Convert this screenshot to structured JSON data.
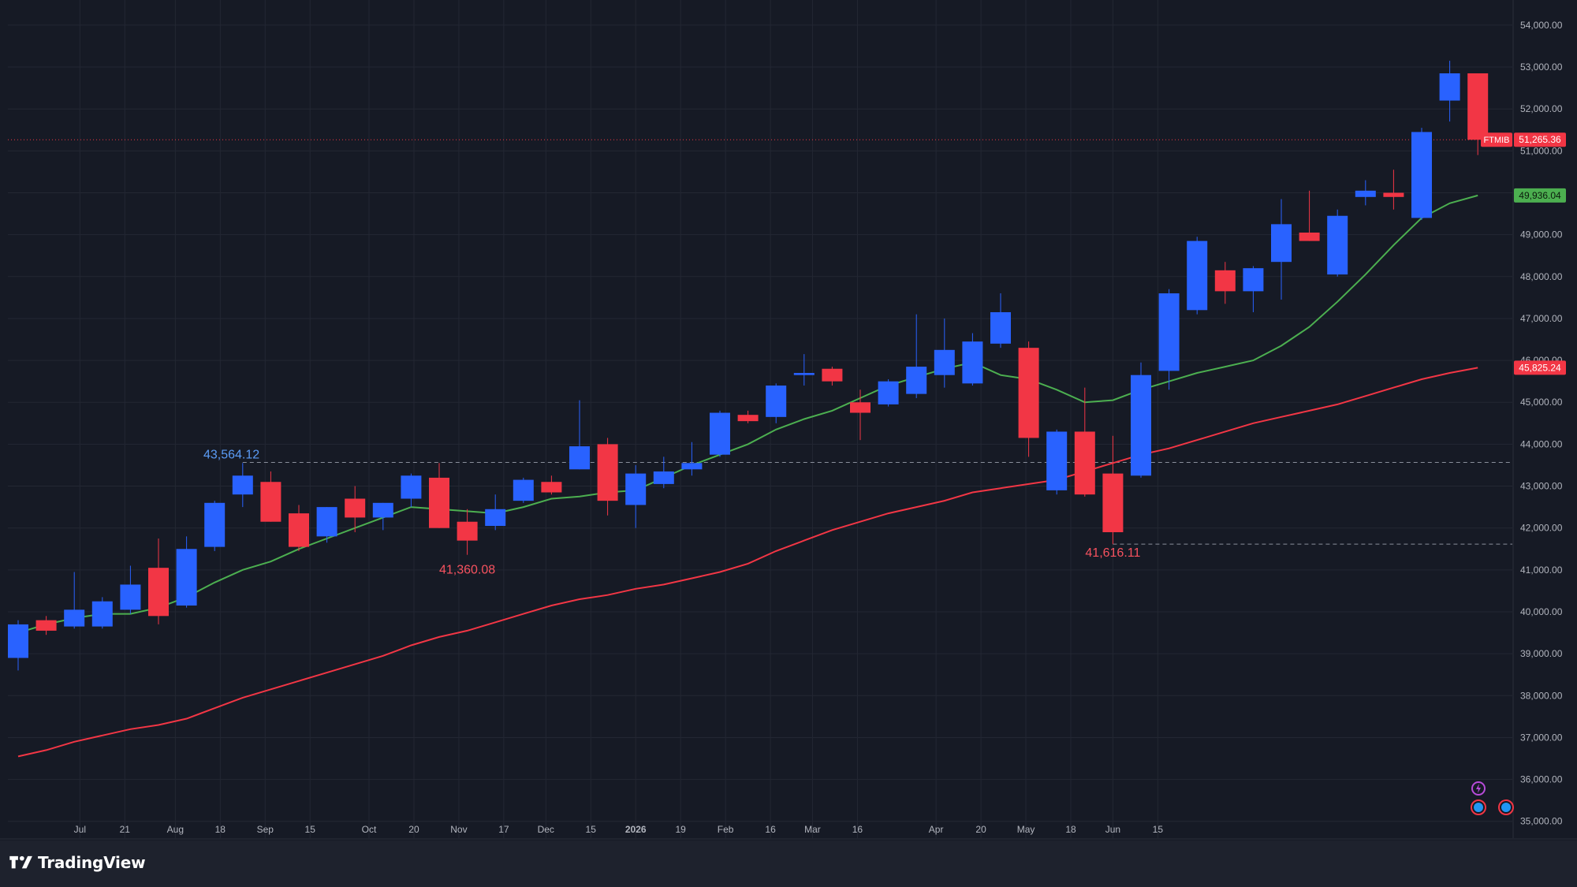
{
  "footer": {
    "brand_name": "TradingView",
    "logo_icon": "tradingview-logo-icon"
  },
  "colors": {
    "background": "#161a25",
    "grid": "#232733",
    "axis_text": "#b2b5be",
    "up_candle": "#2962ff",
    "down_candle": "#f23645",
    "ma_fast": "#4caf50",
    "ma_slow": "#f23645",
    "high_label": "#5b9cf6",
    "low_label": "#f7525f",
    "last_price_badge": "#f23645",
    "ma_fast_badge": "#4caf50"
  },
  "chart_data": {
    "type": "candlestick",
    "interval": "weekly",
    "symbol": "FTMIB",
    "y_range": [
      34600,
      54600
    ],
    "x_ticks": [
      "Jul",
      "21",
      "Aug",
      "18",
      "Sep",
      "15",
      "Oct",
      "20",
      "Nov",
      "17",
      "Dec",
      "15",
      "2026",
      "19",
      "Feb",
      "16",
      "Mar",
      "16",
      "Apr",
      "20",
      "May",
      "18",
      "Jun",
      "15"
    ],
    "y_ticks": [
      "35,000.00",
      "36,000.00",
      "37,000.00",
      "38,000.00",
      "39,000.00",
      "40,000.00",
      "41,000.00",
      "42,000.00",
      "43,000.00",
      "44,000.00",
      "45,000.00",
      "46,000.00",
      "47,000.00",
      "48,000.00",
      "49,000.00",
      "50,000.00",
      "51,000.00",
      "52,000.00",
      "53,000.00",
      "54,000.00"
    ],
    "candles": [
      {
        "o": 38900,
        "h": 39800,
        "l": 38600,
        "c": 39700
      },
      {
        "o": 39800,
        "h": 39900,
        "l": 39450,
        "c": 39550
      },
      {
        "o": 39650,
        "h": 40950,
        "l": 39600,
        "c": 40050
      },
      {
        "o": 39650,
        "h": 40350,
        "l": 39600,
        "c": 40250
      },
      {
        "o": 40050,
        "h": 41100,
        "l": 39950,
        "c": 40650
      },
      {
        "o": 41050,
        "h": 41750,
        "l": 39700,
        "c": 39900
      },
      {
        "o": 40150,
        "h": 41800,
        "l": 40100,
        "c": 41500
      },
      {
        "o": 41550,
        "h": 42650,
        "l": 41450,
        "c": 42600
      },
      {
        "o": 42800,
        "h": 43550,
        "l": 42500,
        "c": 43250
      },
      {
        "o": 43100,
        "h": 43350,
        "l": 42150,
        "c": 42150
      },
      {
        "o": 42350,
        "h": 42550,
        "l": 41450,
        "c": 41550
      },
      {
        "o": 41800,
        "h": 42500,
        "l": 41650,
        "c": 42500
      },
      {
        "o": 42700,
        "h": 43000,
        "l": 41900,
        "c": 42250
      },
      {
        "o": 42250,
        "h": 42600,
        "l": 41950,
        "c": 42600
      },
      {
        "o": 42700,
        "h": 43300,
        "l": 42500,
        "c": 43250
      },
      {
        "o": 43200,
        "h": 43550,
        "l": 42000,
        "c": 42000
      },
      {
        "o": 42150,
        "h": 42450,
        "l": 41360,
        "c": 41700
      },
      {
        "o": 42050,
        "h": 42800,
        "l": 41950,
        "c": 42450
      },
      {
        "o": 42650,
        "h": 43200,
        "l": 42600,
        "c": 43150
      },
      {
        "o": 43100,
        "h": 43250,
        "l": 42800,
        "c": 42850
      },
      {
        "o": 43400,
        "h": 45050,
        "l": 43400,
        "c": 43950
      },
      {
        "o": 44000,
        "h": 44150,
        "l": 42300,
        "c": 42650
      },
      {
        "o": 42550,
        "h": 43500,
        "l": 42000,
        "c": 43300
      },
      {
        "o": 43050,
        "h": 43700,
        "l": 42950,
        "c": 43350
      },
      {
        "o": 43400,
        "h": 44050,
        "l": 43250,
        "c": 43550
      },
      {
        "o": 43750,
        "h": 44800,
        "l": 43700,
        "c": 44750
      },
      {
        "o": 44700,
        "h": 44800,
        "l": 44500,
        "c": 44550
      },
      {
        "o": 44650,
        "h": 45450,
        "l": 44500,
        "c": 45400
      },
      {
        "o": 45650,
        "h": 46150,
        "l": 45400,
        "c": 45700
      },
      {
        "o": 45800,
        "h": 45850,
        "l": 45400,
        "c": 45500
      },
      {
        "o": 45000,
        "h": 45300,
        "l": 44100,
        "c": 44750
      },
      {
        "o": 44950,
        "h": 45550,
        "l": 44900,
        "c": 45500
      },
      {
        "o": 45200,
        "h": 47100,
        "l": 45100,
        "c": 45850
      },
      {
        "o": 45650,
        "h": 47000,
        "l": 45350,
        "c": 46250
      },
      {
        "o": 45450,
        "h": 46650,
        "l": 45400,
        "c": 46450
      },
      {
        "o": 46400,
        "h": 47600,
        "l": 46300,
        "c": 47150
      },
      {
        "o": 46300,
        "h": 46450,
        "l": 43700,
        "c": 44150
      },
      {
        "o": 42900,
        "h": 44350,
        "l": 42800,
        "c": 44300
      },
      {
        "o": 44300,
        "h": 45350,
        "l": 42750,
        "c": 42800
      },
      {
        "o": 43300,
        "h": 44200,
        "l": 41616,
        "c": 41900
      },
      {
        "o": 43250,
        "h": 45950,
        "l": 43200,
        "c": 45650
      },
      {
        "o": 45750,
        "h": 47700,
        "l": 45300,
        "c": 47600
      },
      {
        "o": 47200,
        "h": 48950,
        "l": 47100,
        "c": 48850
      },
      {
        "o": 48150,
        "h": 48350,
        "l": 47350,
        "c": 47650
      },
      {
        "o": 47650,
        "h": 48250,
        "l": 47150,
        "c": 48200
      },
      {
        "o": 48350,
        "h": 49850,
        "l": 47450,
        "c": 49250
      },
      {
        "o": 49050,
        "h": 50050,
        "l": 48850,
        "c": 48850
      },
      {
        "o": 48050,
        "h": 49600,
        "l": 48000,
        "c": 49450
      },
      {
        "o": 49900,
        "h": 50300,
        "l": 49700,
        "c": 50050
      },
      {
        "o": 50000,
        "h": 50550,
        "l": 49600,
        "c": 49900
      },
      {
        "o": 49400,
        "h": 51550,
        "l": 49350,
        "c": 51450
      },
      {
        "o": 52200,
        "h": 53150,
        "l": 51700,
        "c": 52850
      },
      {
        "o": 52850,
        "h": 52850,
        "l": 50900,
        "c": 51265.36
      }
    ],
    "ma_fast": [
      39500,
      39700,
      39850,
      39950,
      39950,
      40100,
      40350,
      40700,
      41000,
      41200,
      41500,
      41750,
      42000,
      42250,
      42500,
      42450,
      42400,
      42350,
      42500,
      42700,
      42750,
      42850,
      42900,
      43200,
      43500,
      43750,
      44000,
      44350,
      44600,
      44800,
      45100,
      45400,
      45600,
      45800,
      45950,
      45650,
      45550,
      45300,
      45000,
      45050,
      45300,
      45500,
      45700,
      45850,
      46000,
      46350,
      46800,
      47400,
      48050,
      48750,
      49400,
      49750,
      49936.04
    ],
    "ma_slow": [
      36550,
      36700,
      36900,
      37050,
      37200,
      37300,
      37450,
      37700,
      37950,
      38150,
      38350,
      38550,
      38750,
      38950,
      39200,
      39400,
      39550,
      39750,
      39950,
      40150,
      40300,
      40400,
      40550,
      40650,
      40800,
      40950,
      41150,
      41450,
      41700,
      41950,
      42150,
      42350,
      42500,
      42650,
      42850,
      42950,
      43050,
      43150,
      43350,
      43550,
      43750,
      43900,
      44100,
      44300,
      44500,
      44650,
      44800,
      44950,
      45150,
      45350,
      45550,
      45700,
      45825.24
    ],
    "annotations": {
      "high": {
        "value": 43564.12,
        "label": "43,564.12"
      },
      "low1": {
        "value": 41360.08,
        "label": "41,360.08"
      },
      "low2": {
        "value": 41616.11,
        "label": "41,616.11"
      }
    },
    "price_badges": {
      "last": {
        "value": 51265.36,
        "symbol": "FTMIB",
        "label": "51,265.36"
      },
      "ma_fast": {
        "value": 49936.04,
        "label": "49,936.04"
      },
      "ma_slow": {
        "value": 45825.24,
        "label": "45,825.24"
      }
    },
    "event_icons": [
      "lightning-icon",
      "dividend-icon",
      "dividend-icon"
    ]
  }
}
